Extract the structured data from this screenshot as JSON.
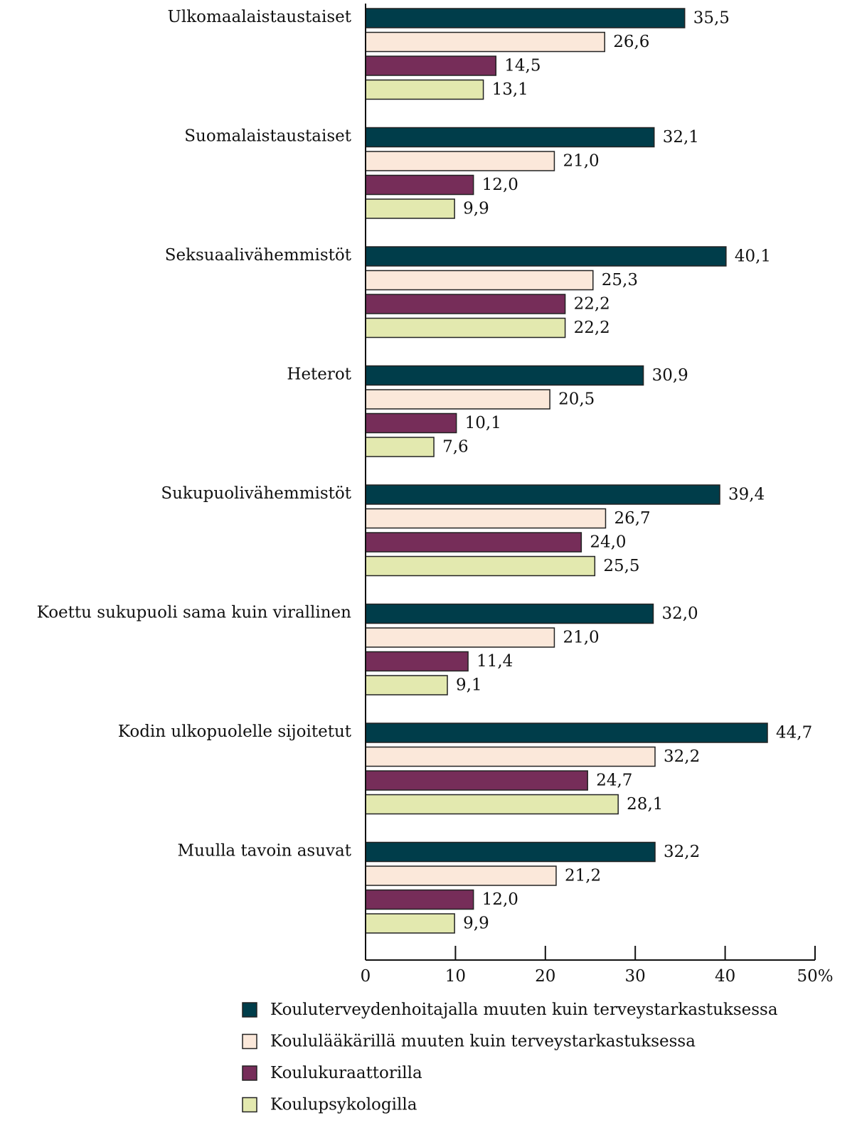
{
  "chart_data": {
    "type": "bar",
    "orientation": "horizontal",
    "categories": [
      "Ulkomaalaistaustaiset",
      "Suomalaistaustaiset",
      "Seksuaalivähemmistöt",
      "Heterot",
      "Sukupuolivähemmistöt",
      "Koettu sukupuoli sama kuin virallinen",
      "Kodin ulkopuolelle sijoitetut",
      "Muulla tavoin asuvat"
    ],
    "series": [
      {
        "name": "Kouluterveydenhoitajalla muuten kuin terveystarkastuksessa",
        "color": "#003d4a",
        "values": [
          35.5,
          32.1,
          40.1,
          30.9,
          39.4,
          32.0,
          44.7,
          32.2
        ],
        "value_labels": [
          "35,5",
          "32,1",
          "40,1",
          "30,9",
          "39,4",
          "32,0",
          "44,7",
          "32,2"
        ]
      },
      {
        "name": "Koululääkärillä muuten kuin terveystarkastuksessa",
        "color": "#fbe8da",
        "values": [
          26.6,
          21.0,
          25.3,
          20.5,
          26.7,
          21.0,
          32.2,
          21.2
        ],
        "value_labels": [
          "26,6",
          "21,0",
          "25,3",
          "20,5",
          "26,7",
          "21,0",
          "32,2",
          "21,2"
        ]
      },
      {
        "name": "Koulukuraattorilla",
        "color": "#762d59",
        "values": [
          14.5,
          12.0,
          22.2,
          10.1,
          24.0,
          11.4,
          24.7,
          12.0
        ],
        "value_labels": [
          "14,5",
          "12,0",
          "22,2",
          "10,1",
          "24,0",
          "11,4",
          "24,7",
          "12,0"
        ]
      },
      {
        "name": "Koulupsykologilla",
        "color": "#e3e9af",
        "values": [
          13.1,
          9.9,
          22.2,
          7.6,
          25.5,
          9.1,
          28.1,
          9.9
        ],
        "value_labels": [
          "13,1",
          "9,9",
          "22,2",
          "7,6",
          "25,5",
          "9,1",
          "28,1",
          "9,9"
        ]
      }
    ],
    "xlim": [
      0,
      50
    ],
    "xticks": [
      0,
      10,
      20,
      30,
      40,
      {
        "value": 50,
        "label": "50%"
      }
    ]
  }
}
